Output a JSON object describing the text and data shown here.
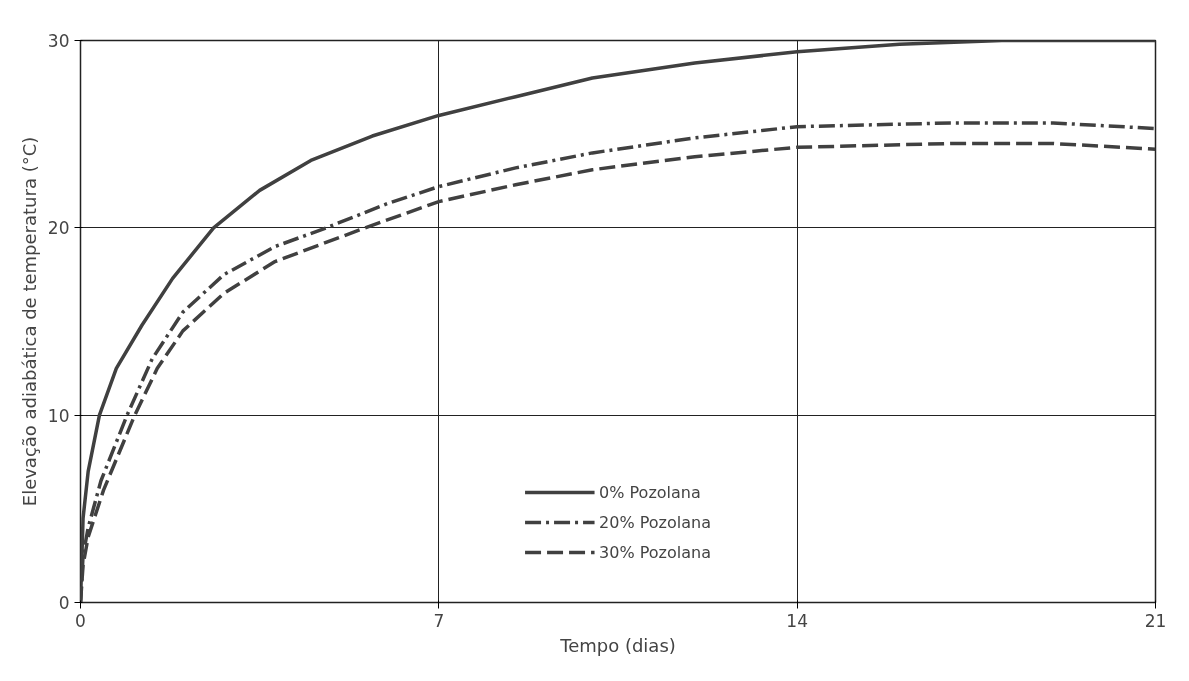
{
  "chart_data": {
    "type": "line",
    "xlabel": "Tempo (dias)",
    "ylabel": "Elevação adiabática de temperatura (°C)",
    "xlim": [
      0,
      21
    ],
    "ylim": [
      0,
      30
    ],
    "xticks": [
      0,
      7,
      14,
      21
    ],
    "yticks": [
      0,
      10,
      20,
      30
    ],
    "grid": true,
    "legend": "bottom",
    "series": [
      {
        "name": "0% Pozolana",
        "color": "#404040",
        "line_style": "solid",
        "x": [
          0,
          0.05,
          0.15,
          0.37,
          0.7,
          1.2,
          1.8,
          2.6,
          3.5,
          4.5,
          5.7,
          7,
          8.5,
          10,
          12,
          14,
          16,
          18,
          21
        ],
        "values": [
          0,
          4.5,
          7,
          10,
          12.5,
          14.8,
          17.3,
          20,
          22,
          23.6,
          24.9,
          26,
          27,
          28,
          28.8,
          29.4,
          29.8,
          30,
          30
        ]
      },
      {
        "name": "20% Pozolana",
        "color": "#404040",
        "line_style": "dashdot",
        "x": [
          0,
          0.05,
          0.15,
          0.4,
          0.91,
          1.4,
          2,
          2.8,
          3.8,
          4.8,
          6,
          7,
          8.5,
          10,
          12,
          14,
          17,
          19,
          21
        ],
        "values": [
          0,
          2.5,
          4,
          6.5,
          10,
          13,
          15.5,
          17.5,
          19,
          20,
          21.3,
          22.2,
          23.2,
          24,
          24.8,
          25.4,
          25.6,
          25.6,
          25.3
        ]
      },
      {
        "name": "30% Pozolana",
        "color": "#404040",
        "line_style": "dashed",
        "x": [
          0,
          0.05,
          0.15,
          0.45,
          1.06,
          1.5,
          2,
          2.8,
          3.8,
          5.56,
          7,
          8.5,
          10,
          12,
          14,
          17,
          19,
          21
        ],
        "values": [
          0,
          2,
          3.5,
          6,
          10,
          12.5,
          14.5,
          16.5,
          18.2,
          20,
          21.4,
          22.3,
          23.1,
          23.8,
          24.3,
          24.5,
          24.5,
          24.2
        ]
      }
    ]
  }
}
